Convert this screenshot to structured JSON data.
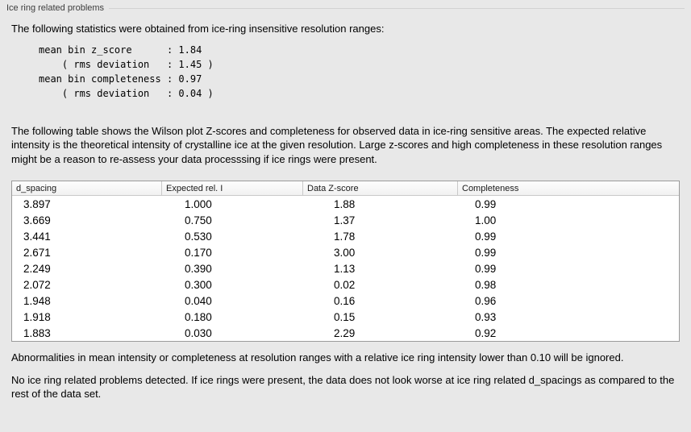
{
  "panel": {
    "title": "Ice ring related problems"
  },
  "intro": "The following statistics were obtained from ice-ring insensitive resolution ranges:",
  "stats_block": "mean bin z_score      : 1.84\n    ( rms deviation   : 1.45 )\nmean bin completeness : 0.97\n    ( rms deviation   : 0.04 )",
  "description": "The following table shows the Wilson plot Z-scores and completeness for observed data in ice-ring sensitive areas. The expected relative intensity is the theoretical intensity of crystalline ice at the given resolution. Large z-scores and high completeness in these resolution ranges might be a reason to re-assess your data processsing if ice rings were present.",
  "table": {
    "columns": [
      "d_spacing",
      "Expected rel. I",
      "Data Z-score",
      "Completeness"
    ],
    "rows": [
      [
        "3.897",
        "1.000",
        "1.88",
        "0.99"
      ],
      [
        "3.669",
        "0.750",
        "1.37",
        "1.00"
      ],
      [
        "3.441",
        "0.530",
        "1.78",
        "0.99"
      ],
      [
        "2.671",
        "0.170",
        "3.00",
        "0.99"
      ],
      [
        "2.249",
        "0.390",
        "1.13",
        "0.99"
      ],
      [
        "2.072",
        "0.300",
        "0.02",
        "0.98"
      ],
      [
        "1.948",
        "0.040",
        "0.16",
        "0.96"
      ],
      [
        "1.918",
        "0.180",
        "0.15",
        "0.93"
      ],
      [
        "1.883",
        "0.030",
        "2.29",
        "0.92"
      ]
    ]
  },
  "note_ignore": "Abnormalities in mean intensity or completeness at resolution ranges with a relative ice ring intensity lower than 0.10 will be ignored.",
  "conclusion": "No ice ring related problems detected. If ice rings were present, the data does not look worse at ice ring related d_spacings as compared to the rest of the data set."
}
